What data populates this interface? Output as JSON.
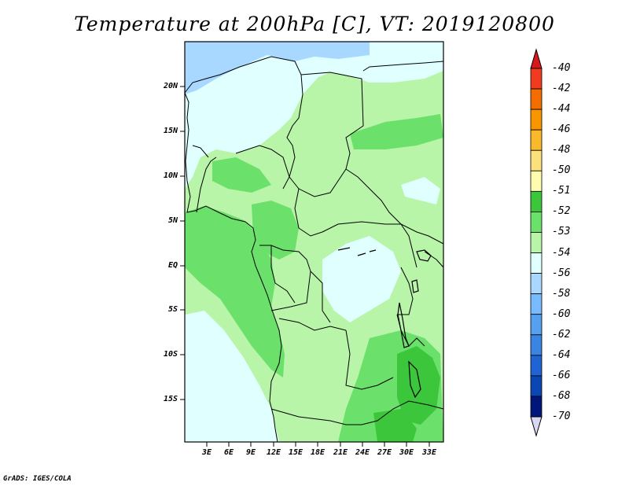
{
  "title": "Temperature at 200hPa [C], VT: 2019120800",
  "credit": "GrADS: IGES/COLA",
  "map": {
    "lat_labels": [
      "20N",
      "15N",
      "10N",
      "5N",
      "EQ",
      "5S",
      "10S",
      "15S"
    ],
    "lon_labels": [
      "3E",
      "6E",
      "9E",
      "12E",
      "15E",
      "18E",
      "21E",
      "24E",
      "27E",
      "30E",
      "33E"
    ]
  },
  "colorbar": {
    "labels": [
      "-40",
      "-42",
      "-44",
      "-46",
      "-48",
      "-50",
      "-51",
      "-52",
      "-53",
      "-54",
      "-56",
      "-58",
      "-60",
      "-62",
      "-64",
      "-66",
      "-68",
      "-70"
    ],
    "colors": [
      "#d7191c",
      "#f03b20",
      "#f46d00",
      "#f99500",
      "#f9b92a",
      "#fce07c",
      "#fffcb0",
      "#3cc63c",
      "#6be06b",
      "#b8f5a8",
      "#e0ffff",
      "#a8d8ff",
      "#78bcff",
      "#56a0f0",
      "#3a84e4",
      "#1e64d2",
      "#0a46b4",
      "#00167a"
    ],
    "top_color": "#d7191c",
    "bottom_color": "#d8d8f0"
  },
  "legend_colors": {
    "c51_below": "#e0ffff",
    "c54": "#b8f5a8",
    "c53": "#6be06b",
    "c52": "#3cc63c",
    "c56": "#a8d8ff"
  }
}
